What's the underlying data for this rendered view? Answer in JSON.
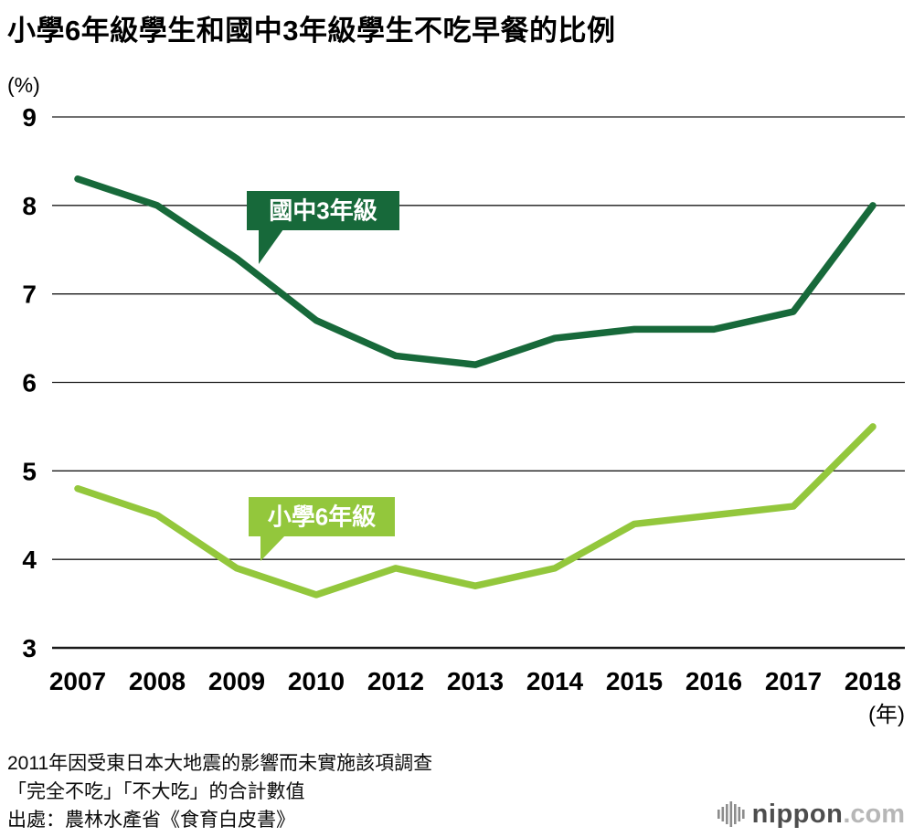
{
  "page": {
    "y_unit": "(%)"
  },
  "footnotes": [
    "2011年因受東日本大地震的影響而未實施該項調查",
    "「完全不吃」「不大吃」的合計數值",
    "出處：農林水產省《食育白皮書》"
  ],
  "logo": {
    "name": "nippon",
    "tld": ".com",
    "icon": "equalizer-bars-icon",
    "icon_color": "#8c8c8c"
  },
  "chart_data": {
    "type": "line",
    "title": "小學6年級學生和國中3年級學生不吃早餐的比例",
    "unit_label": "(%)",
    "x_unit_label": "(年)",
    "categories": [
      "2007",
      "2008",
      "2009",
      "2010",
      "2012",
      "2013",
      "2014",
      "2015",
      "2016",
      "2017",
      "2018"
    ],
    "ylim": [
      3,
      9
    ],
    "yticks": [
      3,
      4,
      5,
      6,
      7,
      8,
      9
    ],
    "grid": true,
    "grid_color": "#1a1a1a",
    "legend_position": "inline-labels",
    "series": [
      {
        "name": "國中3年級",
        "color": "#17693a",
        "values": [
          8.3,
          8.0,
          7.4,
          6.7,
          6.3,
          6.2,
          6.5,
          6.6,
          6.6,
          6.8,
          8.0
        ]
      },
      {
        "name": "小學6年級",
        "color": "#93c73c",
        "values": [
          4.8,
          4.5,
          3.9,
          3.6,
          3.9,
          3.7,
          3.9,
          4.4,
          4.5,
          4.6,
          5.5
        ]
      }
    ]
  }
}
